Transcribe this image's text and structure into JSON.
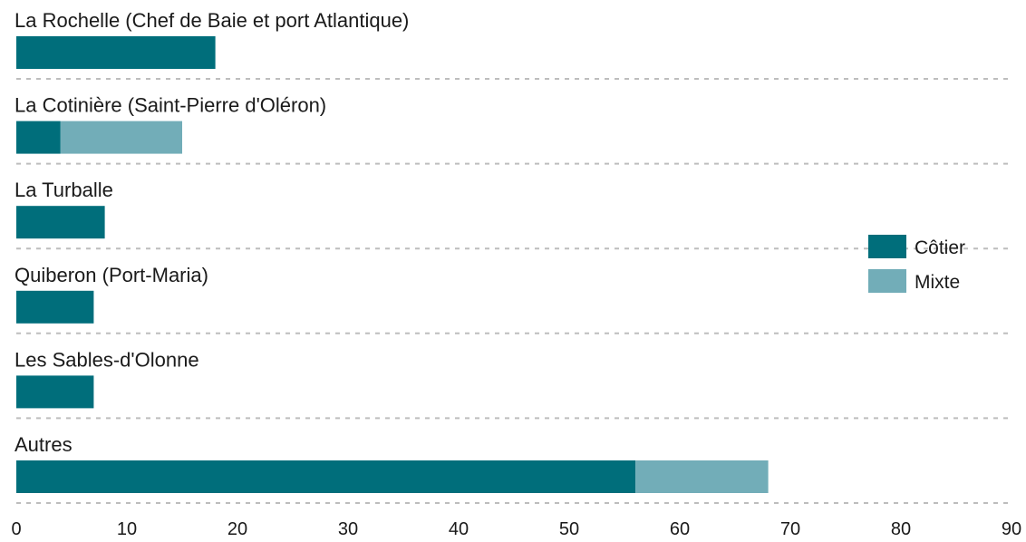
{
  "chart_data": {
    "type": "bar",
    "orientation": "horizontal",
    "stacked": true,
    "categories": [
      "La Rochelle (Chef de Baie et port Atlantique)",
      "La Cotinière (Saint-Pierre d'Oléron)",
      "La Turballe",
      "Quiberon (Port-Maria)",
      "Les Sables-d'Olonne",
      "Autres"
    ],
    "series": [
      {
        "name": "Côtier",
        "values": [
          18,
          4,
          8,
          7,
          7,
          56
        ],
        "color": "#006e7b"
      },
      {
        "name": "Mixte",
        "values": [
          0,
          11,
          0,
          0,
          0,
          12
        ],
        "color": "#72adb8"
      }
    ],
    "xlim": [
      0,
      90
    ],
    "xticks": [
      "0",
      "10",
      "20",
      "30",
      "40",
      "50",
      "60",
      "70",
      "80",
      "90"
    ],
    "title": "",
    "xlabel": "",
    "ylabel": "",
    "legend_position": "right",
    "grid": false
  }
}
